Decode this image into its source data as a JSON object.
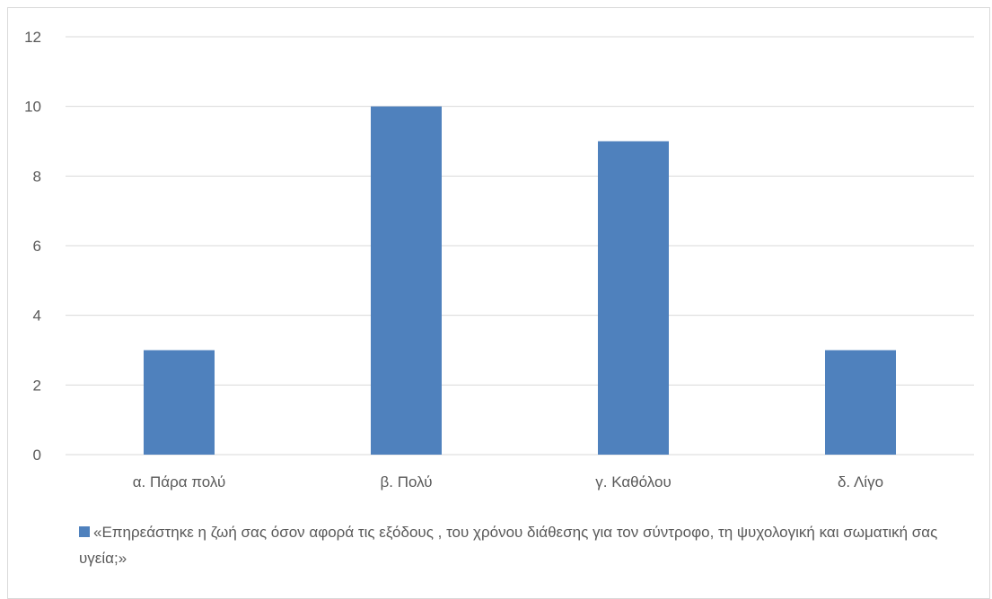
{
  "chart_data": {
    "type": "bar",
    "categories": [
      "α. Πάρα πολύ",
      "β. Πολύ",
      "γ. Καθόλου",
      "δ. Λίγο"
    ],
    "series": [
      {
        "name": "«Επηρεάστηκε η ζωή σας όσον αφορά τις εξόδους , του χρόνου διάθεσης για τον σύντροφο, τη ψυχολογική και σωματική σας υγεία;»",
        "values": [
          3,
          10,
          9,
          3
        ],
        "color": "#4f81bd"
      }
    ],
    "ylim": [
      0,
      12
    ],
    "yticks": [
      0,
      2,
      4,
      6,
      8,
      10,
      12
    ],
    "grid": true,
    "gridColor": "#d9d9d9",
    "legend_position": "bottom"
  }
}
